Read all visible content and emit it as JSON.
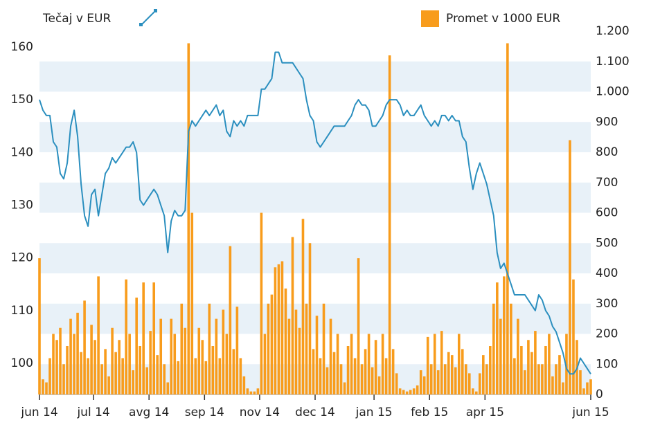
{
  "chart_data": {
    "type": "combo",
    "xlim": [
      0,
      159
    ],
    "xticks": [
      {
        "value": 0,
        "label": "jun 14"
      },
      {
        "value": 15.6,
        "label": "jul 14"
      },
      {
        "value": 31.6,
        "label": "avg 14"
      },
      {
        "value": 47.6,
        "label": "sep 14"
      },
      {
        "value": 63.5,
        "label": "nov 14"
      },
      {
        "value": 79.5,
        "label": "dec 14"
      },
      {
        "value": 96.5,
        "label": "jan 15"
      },
      {
        "value": 112.5,
        "label": "feb 15"
      },
      {
        "value": 128.5,
        "label": "apr 15"
      },
      {
        "value": 159,
        "label": "jun 15"
      }
    ],
    "ylim": [
      94.1,
      163
    ],
    "yticks": [
      100,
      110,
      120,
      130,
      140,
      150,
      160
    ],
    "y2lim": [
      0,
      1200
    ],
    "y2ticks": [
      0,
      100,
      200,
      300,
      400,
      500,
      600,
      700,
      800,
      900,
      {
        "value": 1000,
        "label": "1.000"
      },
      {
        "value": 1100,
        "label": "1.100"
      },
      {
        "value": 1200,
        "label": "1.200"
      }
    ],
    "series": [
      {
        "name": "Promet v 1000 EUR",
        "type": "bar",
        "axis": "y2",
        "color": "#f89c1c",
        "values": [
          450,
          50,
          40,
          120,
          200,
          180,
          220,
          100,
          160,
          250,
          200,
          270,
          140,
          310,
          120,
          230,
          180,
          390,
          100,
          150,
          60,
          220,
          140,
          180,
          120,
          380,
          200,
          80,
          320,
          160,
          370,
          90,
          210,
          370,
          130,
          250,
          100,
          40,
          250,
          200,
          110,
          300,
          220,
          1160,
          600,
          120,
          220,
          180,
          110,
          300,
          160,
          250,
          120,
          280,
          200,
          490,
          150,
          290,
          120,
          60,
          20,
          10,
          10,
          20,
          600,
          200,
          300,
          330,
          420,
          430,
          440,
          350,
          250,
          520,
          280,
          220,
          580,
          300,
          500,
          150,
          260,
          120,
          300,
          90,
          250,
          140,
          200,
          100,
          40,
          160,
          200,
          120,
          450,
          100,
          150,
          200,
          90,
          180,
          60,
          200,
          120,
          1120,
          150,
          70,
          20,
          15,
          10,
          15,
          20,
          30,
          80,
          60,
          190,
          100,
          200,
          80,
          210,
          100,
          140,
          130,
          90,
          200,
          150,
          100,
          70,
          20,
          10,
          70,
          130,
          100,
          160,
          300,
          370,
          250,
          390,
          1160,
          300,
          120,
          250,
          160,
          80,
          180,
          140,
          210,
          100,
          100,
          160,
          200,
          60,
          100,
          130,
          40,
          200,
          840,
          380,
          180,
          80,
          20,
          40,
          50
        ]
      },
      {
        "name": "Tečaj v EUR",
        "type": "line",
        "axis": "y",
        "color": "#2b8fbf",
        "values": [
          150,
          148,
          147,
          147,
          142,
          141,
          136,
          135,
          138,
          145,
          148,
          143,
          134,
          128,
          126,
          132,
          133,
          128,
          132,
          136,
          137,
          139,
          138,
          139,
          140,
          141,
          141,
          142,
          140,
          131,
          130,
          131,
          132,
          133,
          132,
          130,
          128,
          121,
          127,
          129,
          128,
          128,
          129,
          144,
          146,
          145,
          146,
          147,
          148,
          147,
          148,
          149,
          147,
          148,
          144,
          143,
          146,
          145,
          146,
          145,
          147,
          147,
          147,
          147,
          152,
          152,
          153,
          154,
          159,
          159,
          157,
          157,
          157,
          157,
          156,
          155,
          154,
          150,
          147,
          146,
          142,
          141,
          142,
          143,
          144,
          145,
          145,
          145,
          145,
          146,
          147,
          149,
          150,
          149,
          149,
          148,
          145,
          145,
          146,
          147,
          149,
          150,
          150,
          150,
          149,
          147,
          148,
          147,
          147,
          148,
          149,
          147,
          146,
          145,
          146,
          145,
          147,
          147,
          146,
          147,
          146,
          146,
          143,
          142,
          137,
          133,
          136,
          138,
          136,
          134,
          131,
          128,
          121,
          118,
          119,
          117,
          115,
          113,
          113,
          113,
          113,
          112,
          111,
          110,
          113,
          112,
          110,
          109,
          107,
          106,
          104,
          102,
          99,
          98,
          98,
          99,
          101,
          100,
          99,
          98
        ]
      }
    ]
  }
}
